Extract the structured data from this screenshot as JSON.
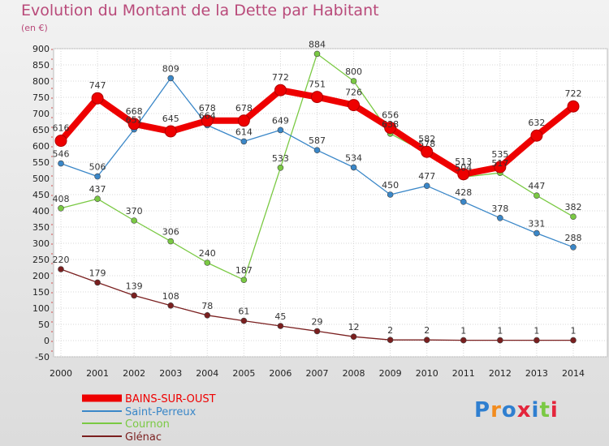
{
  "title": "Evolution du Montant de la Dette par Habitant",
  "unit": "(en €)",
  "brand": "Proxiti",
  "chart_data": {
    "type": "line",
    "x": [
      "2000",
      "2001",
      "2002",
      "2003",
      "2004",
      "2005",
      "2006",
      "2007",
      "2008",
      "2009",
      "2010",
      "2011",
      "2012",
      "2013",
      "2014"
    ],
    "ylim": [
      -50,
      900
    ],
    "yticks": [
      -50,
      0,
      50,
      100,
      150,
      200,
      250,
      300,
      350,
      400,
      450,
      500,
      550,
      600,
      650,
      700,
      750,
      800,
      850,
      900
    ],
    "grid": true,
    "legend_position": "bottom-left",
    "series": [
      {
        "name": "BAINS-SUR-OUST",
        "color": "#ee0000",
        "values": [
          616,
          747,
          668,
          645,
          678,
          678,
          772,
          751,
          726,
          656,
          582,
          513,
          535,
          632,
          722
        ],
        "labels": [
          "616",
          "747",
          "668",
          "645",
          "678",
          "678",
          "772",
          "751",
          "726",
          "656",
          "582",
          "513",
          "535",
          "632",
          "722"
        ]
      },
      {
        "name": "Saint-Perreux",
        "color": "#3a87c8",
        "values": [
          546,
          506,
          651,
          809,
          664,
          614,
          649,
          587,
          534,
          450,
          477,
          428,
          378,
          331,
          288
        ],
        "labels": [
          "546",
          "506",
          "651",
          "809",
          "664",
          "614",
          "649",
          "587",
          "534",
          "450",
          "477",
          "428",
          "378",
          "331",
          "288"
        ]
      },
      {
        "name": "Cournon",
        "color": "#7ac943",
        "values": [
          408,
          437,
          370,
          306,
          240,
          187,
          533,
          884,
          800,
          638,
          578,
          504,
          517,
          447,
          382
        ],
        "labels": [
          "408",
          "437",
          "370",
          "306",
          "240",
          "187",
          "533",
          "884",
          "800",
          "638",
          "578",
          "504",
          "517",
          "447",
          "382"
        ]
      },
      {
        "name": "Glénac",
        "color": "#7a1f1f",
        "values": [
          220,
          179,
          139,
          108,
          78,
          61,
          45,
          29,
          12,
          2,
          2,
          1,
          1,
          1,
          1
        ],
        "labels": [
          "220",
          "179",
          "139",
          "108",
          "78",
          "61",
          "45",
          "29",
          "12",
          "2",
          "2",
          "1",
          "1",
          "1",
          "1"
        ]
      }
    ]
  }
}
